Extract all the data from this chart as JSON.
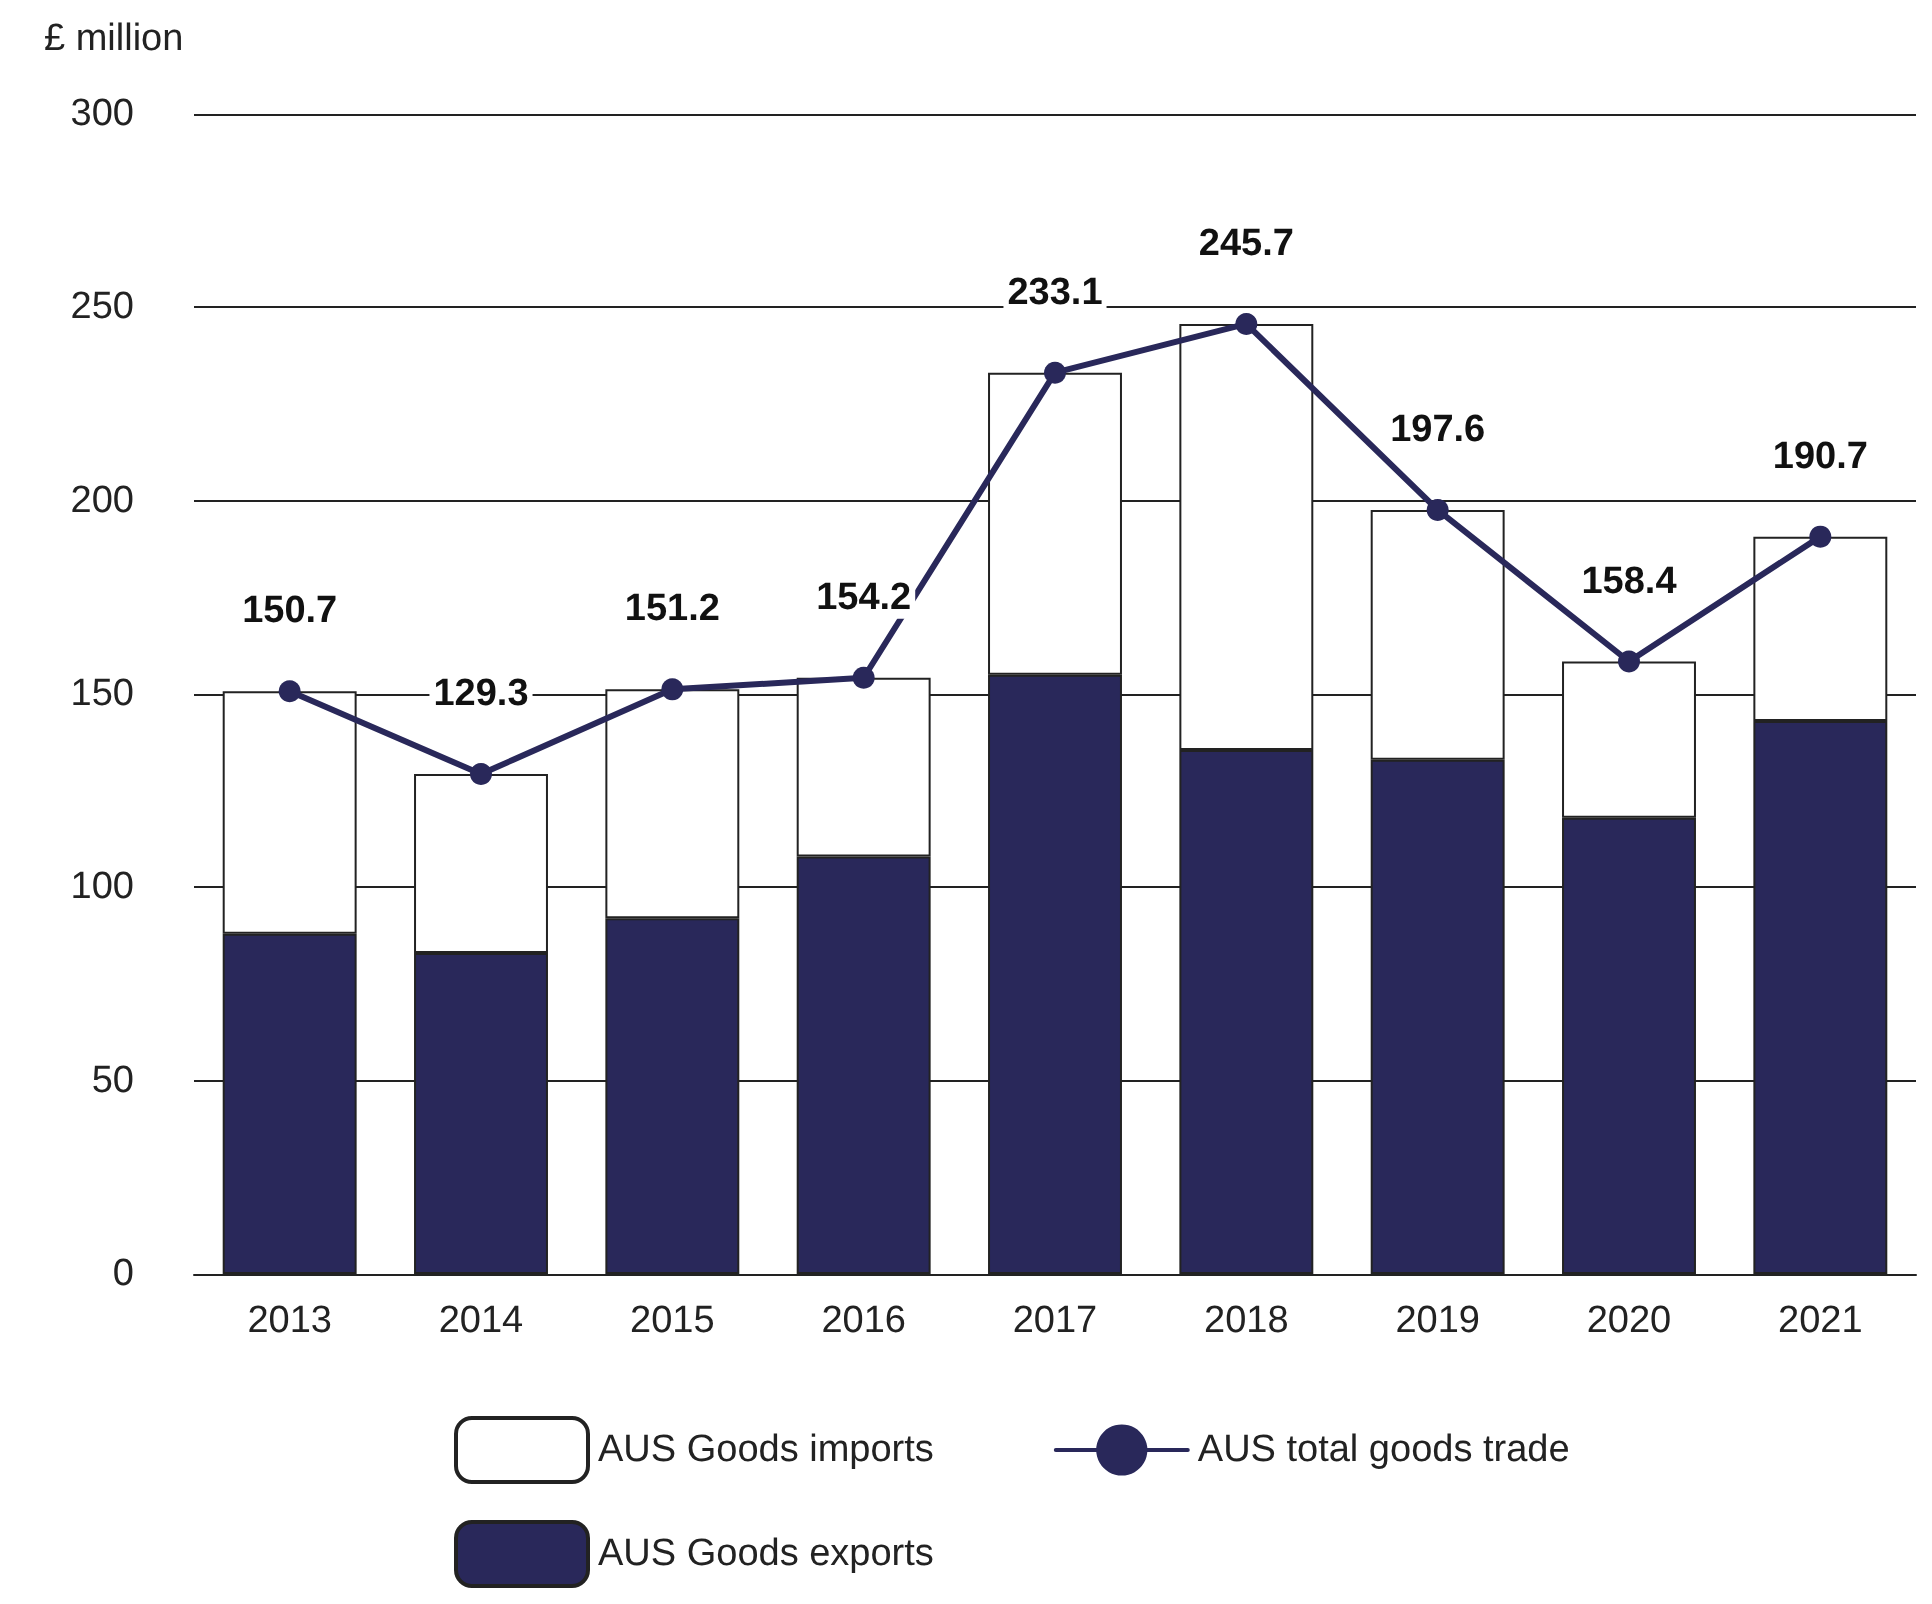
{
  "chart_data": {
    "type": "bar",
    "stacked": true,
    "ylabel": "£ million",
    "categories": [
      "2013",
      "2014",
      "2015",
      "2016",
      "2017",
      "2018",
      "2019",
      "2020",
      "2021"
    ],
    "series": [
      {
        "name": "AUS Goods exports",
        "color": "#29285a",
        "values": [
          88,
          83,
          92,
          108,
          155,
          135.5,
          133,
          118,
          143
        ]
      },
      {
        "name": "AUS Goods imports",
        "color": "#ffffff",
        "values": [
          62.7,
          46.3,
          59.2,
          46.2,
          78.1,
          110.2,
          64.6,
          40.4,
          47.7
        ]
      },
      {
        "name": "AUS total goods trade",
        "type": "line",
        "color": "#29285a",
        "values": [
          150.7,
          129.3,
          151.2,
          154.2,
          233.1,
          245.7,
          197.6,
          158.4,
          190.7
        ],
        "value_labels": [
          "150.7",
          "129.3",
          "151.2",
          "154.2",
          "233.1",
          "245.7",
          "197.6",
          "158.4",
          "190.7"
        ]
      }
    ],
    "ylim": [
      0,
      300
    ],
    "yticks": [
      0,
      50,
      100,
      150,
      200,
      250,
      300
    ],
    "grid": "y",
    "legend": "bottom",
    "marker": "circle",
    "line_style": "solid"
  }
}
